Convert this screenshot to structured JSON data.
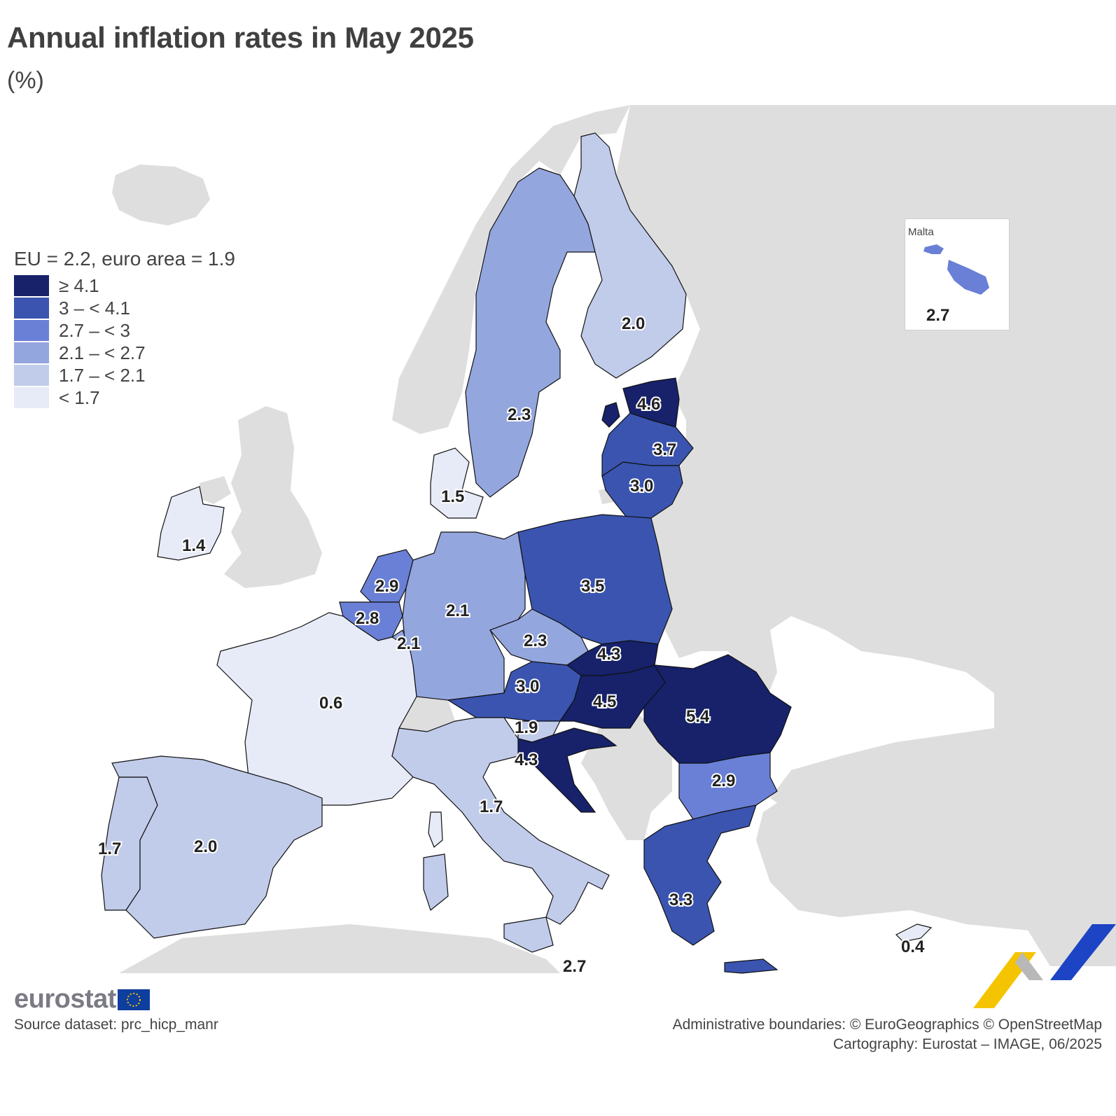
{
  "title": "Annual inflation rates in May 2025",
  "unit": "(%)",
  "legend": {
    "title": "EU = 2.2, euro area = 1.9",
    "classes": [
      {
        "label": "≥ 4.1",
        "color": "#17226b"
      },
      {
        "label": "3 – < 4.1",
        "color": "#3a54b0"
      },
      {
        "label": "2.7 – < 3",
        "color": "#6a80d6"
      },
      {
        "label": "2.1 – < 2.7",
        "color": "#94a6de"
      },
      {
        "label": "1.7 – < 2.1",
        "color": "#c1cbea"
      },
      {
        "label": "< 1.7",
        "color": "#e7eaf7"
      }
    ]
  },
  "colors": {
    "non_eu": "#dedede",
    "sea": "#ffffff",
    "border": "#111111"
  },
  "countries": [
    {
      "name": "Finland",
      "value": "2.0"
    },
    {
      "name": "Sweden",
      "value": "2.3"
    },
    {
      "name": "Estonia",
      "value": "4.6"
    },
    {
      "name": "Latvia",
      "value": "3.7"
    },
    {
      "name": "Lithuania",
      "value": "3.0"
    },
    {
      "name": "Denmark",
      "value": "1.5"
    },
    {
      "name": "Ireland",
      "value": "1.4"
    },
    {
      "name": "Netherlands",
      "value": "2.9"
    },
    {
      "name": "Belgium",
      "value": "2.8"
    },
    {
      "name": "Luxembourg",
      "value": "2.1"
    },
    {
      "name": "Germany",
      "value": "2.1"
    },
    {
      "name": "Poland",
      "value": "3.5"
    },
    {
      "name": "Czechia",
      "value": "2.3"
    },
    {
      "name": "Slovakia",
      "value": "4.3"
    },
    {
      "name": "Austria",
      "value": "3.0"
    },
    {
      "name": "Hungary",
      "value": "4.5"
    },
    {
      "name": "Romania",
      "value": "5.4"
    },
    {
      "name": "France",
      "value": "0.6"
    },
    {
      "name": "Slovenia",
      "value": "1.9"
    },
    {
      "name": "Croatia",
      "value": "4.3"
    },
    {
      "name": "Bulgaria",
      "value": "2.9"
    },
    {
      "name": "Italy",
      "value": "1.7"
    },
    {
      "name": "Portugal",
      "value": "1.7"
    },
    {
      "name": "Spain",
      "value": "2.0"
    },
    {
      "name": "Greece",
      "value": "3.3"
    },
    {
      "name": "Cyprus",
      "value": "0.4"
    },
    {
      "name": "Malta",
      "value": "2.7"
    }
  ],
  "inset": {
    "title": "Malta",
    "value": "2.7"
  },
  "logo": {
    "text": "eurostat"
  },
  "source": "Source dataset: prc_hicp_manr",
  "credits": {
    "line1": "Administrative boundaries: © EuroGeographics © OpenStreetMap",
    "line2": "Cartography: Eurostat – IMAGE, 06/2025"
  }
}
